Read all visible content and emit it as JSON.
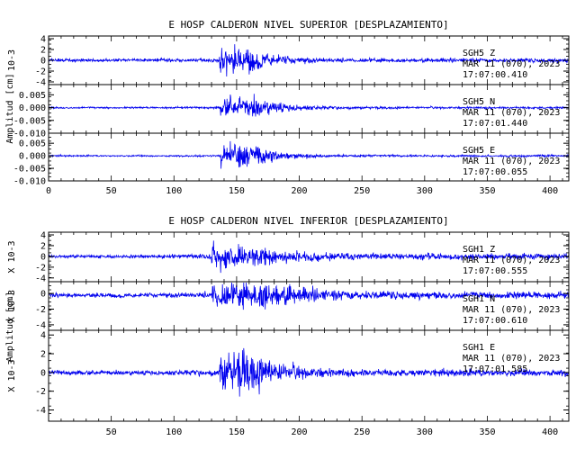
{
  "chart_data": [
    {
      "type": "line",
      "title": "E HOSP CALDERON NIVEL SUPERIOR [DESPLAZAMIENTO]",
      "ylabel": "Amplitud [cm]",
      "xlim": [
        0,
        415
      ],
      "xticks": [
        0,
        50,
        100,
        150,
        200,
        250,
        300,
        350,
        400
      ],
      "panels": [
        {
          "station": "SGH5",
          "channel": "Z",
          "date": "MAR 11 (070), 2023",
          "time": "17:07:00.410",
          "scale_label": "10-3",
          "ylim": [
            -0.0045,
            0.0045
          ],
          "yticks": [
            {
              "v": 0.004,
              "t": "4"
            },
            {
              "v": 0.002,
              "t": "2"
            },
            {
              "v": 0.0,
              "t": "0"
            },
            {
              "v": -0.002,
              "t": "-2"
            },
            {
              "v": -0.004,
              "t": "-4"
            }
          ],
          "env": {
            "base": 0.00045,
            "low": 0.0006,
            "peak": 0.0042,
            "burst_start": 136,
            "burst_end": 160,
            "decay": 18,
            "offset": 0.0
          }
        },
        {
          "station": "SGH5",
          "channel": "N",
          "date": "MAR 11 (070), 2023",
          "time": "17:07:01.440",
          "scale_label": "",
          "ylim": [
            -0.01,
            0.009
          ],
          "yticks": [
            {
              "v": 0.005,
              "t": "0.005"
            },
            {
              "v": 0.0,
              "t": "0.000"
            },
            {
              "v": -0.005,
              "t": "-0.005"
            },
            {
              "v": -0.01,
              "t": "-0.010"
            }
          ],
          "env": {
            "base": 0.0005,
            "low": 0.0007,
            "peak": 0.0075,
            "burst_start": 137,
            "burst_end": 162,
            "decay": 22,
            "offset": 0.0
          }
        },
        {
          "station": "SGH5",
          "channel": "E",
          "date": "MAR 11 (070), 2023",
          "time": "17:07:00.055",
          "scale_label": "",
          "ylim": [
            -0.01,
            0.009
          ],
          "yticks": [
            {
              "v": 0.005,
              "t": "0.005"
            },
            {
              "v": 0.0,
              "t": "0.000"
            },
            {
              "v": -0.005,
              "t": "-0.005"
            },
            {
              "v": -0.01,
              "t": "-0.010"
            }
          ],
          "env": {
            "base": 0.0005,
            "low": 0.0007,
            "peak": 0.0085,
            "burst_start": 137,
            "burst_end": 162,
            "decay": 20,
            "offset": 0.0
          }
        }
      ]
    },
    {
      "type": "line",
      "title": "E HOSP CALDERON NIVEL INFERIOR [DESPLAZAMIENTO]",
      "ylabel": "Amplitud [cm]",
      "xlim": [
        0,
        415
      ],
      "xticks": [
        50,
        100,
        150,
        200,
        250,
        300,
        350,
        400
      ],
      "panels": [
        {
          "station": "SGH1",
          "channel": "Z",
          "date": "MAR 11 (070), 2023",
          "time": "17:07:00.555",
          "scale_label": "X 10-3",
          "ylim": [
            -0.0047,
            0.0045
          ],
          "yticks": [
            {
              "v": 0.004,
              "t": "4"
            },
            {
              "v": 0.002,
              "t": "2"
            },
            {
              "v": 0.0,
              "t": "0"
            },
            {
              "v": -0.002,
              "t": "-2"
            },
            {
              "v": -0.004,
              "t": "-4"
            }
          ],
          "env": {
            "base": 0.0005,
            "low": 0.0009,
            "peak": 0.0042,
            "burst_start": 130,
            "burst_end": 165,
            "decay": 25,
            "offset": 0.0
          }
        },
        {
          "station": "SGH1",
          "channel": "N",
          "date": "MAR 11 (070), 2023",
          "time": "17:07:00.610",
          "scale_label": "X 10-3",
          "ylim": [
            -0.0047,
            0.0015
          ],
          "yticks": [
            {
              "v": 0.0,
              "t": "0"
            },
            {
              "v": -0.002,
              "t": "-2"
            },
            {
              "v": -0.004,
              "t": "-4"
            }
          ],
          "env": {
            "base": 0.00045,
            "low": 0.0007,
            "peak": 0.0035,
            "burst_start": 130,
            "burst_end": 170,
            "decay": 30,
            "offset": -0.0002
          }
        },
        {
          "station": "SGH1",
          "channel": "E",
          "date": "MAR 11 (070), 2023",
          "time": "17:07:01.585",
          "scale_label": "X 10-3",
          "ylim": [
            -0.0052,
            0.0045
          ],
          "yticks": [
            {
              "v": 0.004,
              "t": "4"
            },
            {
              "v": 0.002,
              "t": "2"
            },
            {
              "v": 0.0,
              "t": "0"
            },
            {
              "v": -0.002,
              "t": "-2"
            },
            {
              "v": -0.004,
              "t": "-4"
            }
          ],
          "env": {
            "base": 0.0004,
            "low": 0.0006,
            "peak": 0.0045,
            "burst_start": 136,
            "burst_end": 160,
            "decay": 22,
            "offset": 0.0
          }
        }
      ]
    }
  ],
  "colors": {
    "trace": "#0000ee",
    "axes": "#000000",
    "background": "#ffffff"
  }
}
